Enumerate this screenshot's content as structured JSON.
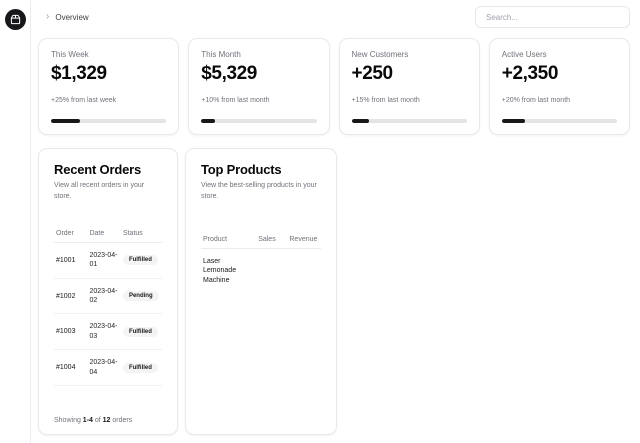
{
  "header": {
    "breadcrumb": {
      "chevron_glyph": "›",
      "label": "Overview"
    },
    "search": {
      "placeholder": "Search..."
    }
  },
  "sidebar": {
    "logo_icon": "package-icon"
  },
  "stats": [
    {
      "label": "This Week",
      "value": "$1,329",
      "note": "+25% from last week",
      "progress": 25
    },
    {
      "label": "This Month",
      "value": "$5,329",
      "note": "+10% from last month",
      "progress": 12
    },
    {
      "label": "New Customers",
      "value": "+250",
      "note": "+15% from last month",
      "progress": 15
    },
    {
      "label": "Active Users",
      "value": "+2,350",
      "note": "+20% from last month",
      "progress": 20
    }
  ],
  "recent_orders": {
    "title": "Recent Orders",
    "subtitle": "View all recent orders in your store.",
    "columns": {
      "order": "Order",
      "date": "Date",
      "status": "Status"
    },
    "rows": [
      {
        "order": "#1001",
        "date": "2023-04-01",
        "status": "Fulfilled"
      },
      {
        "order": "#1002",
        "date": "2023-04-02",
        "status": "Pending"
      },
      {
        "order": "#1003",
        "date": "2023-04-03",
        "status": "Fulfilled"
      },
      {
        "order": "#1004",
        "date": "2023-04-04",
        "status": "Fulfilled"
      }
    ],
    "footer": {
      "prefix": "Showing ",
      "range": "1-4",
      "middle": " of ",
      "total": "12",
      "suffix": " orders"
    }
  },
  "top_products": {
    "title": "Top Products",
    "subtitle": "View the best-selling products in your store.",
    "columns": {
      "product": "Product",
      "sales": "Sales",
      "revenue": "Revenue"
    },
    "rows": [
      {
        "product": "Laser Lemonade Machine",
        "sales": "",
        "revenue": ""
      }
    ]
  },
  "colors": {
    "accent": "#18181b",
    "muted": "#71717a",
    "card_border": "#e9e9eb",
    "badge_bg": "#f4f4f5",
    "progress_track": "#e4e4e7",
    "card_bg": "#ffffff"
  }
}
